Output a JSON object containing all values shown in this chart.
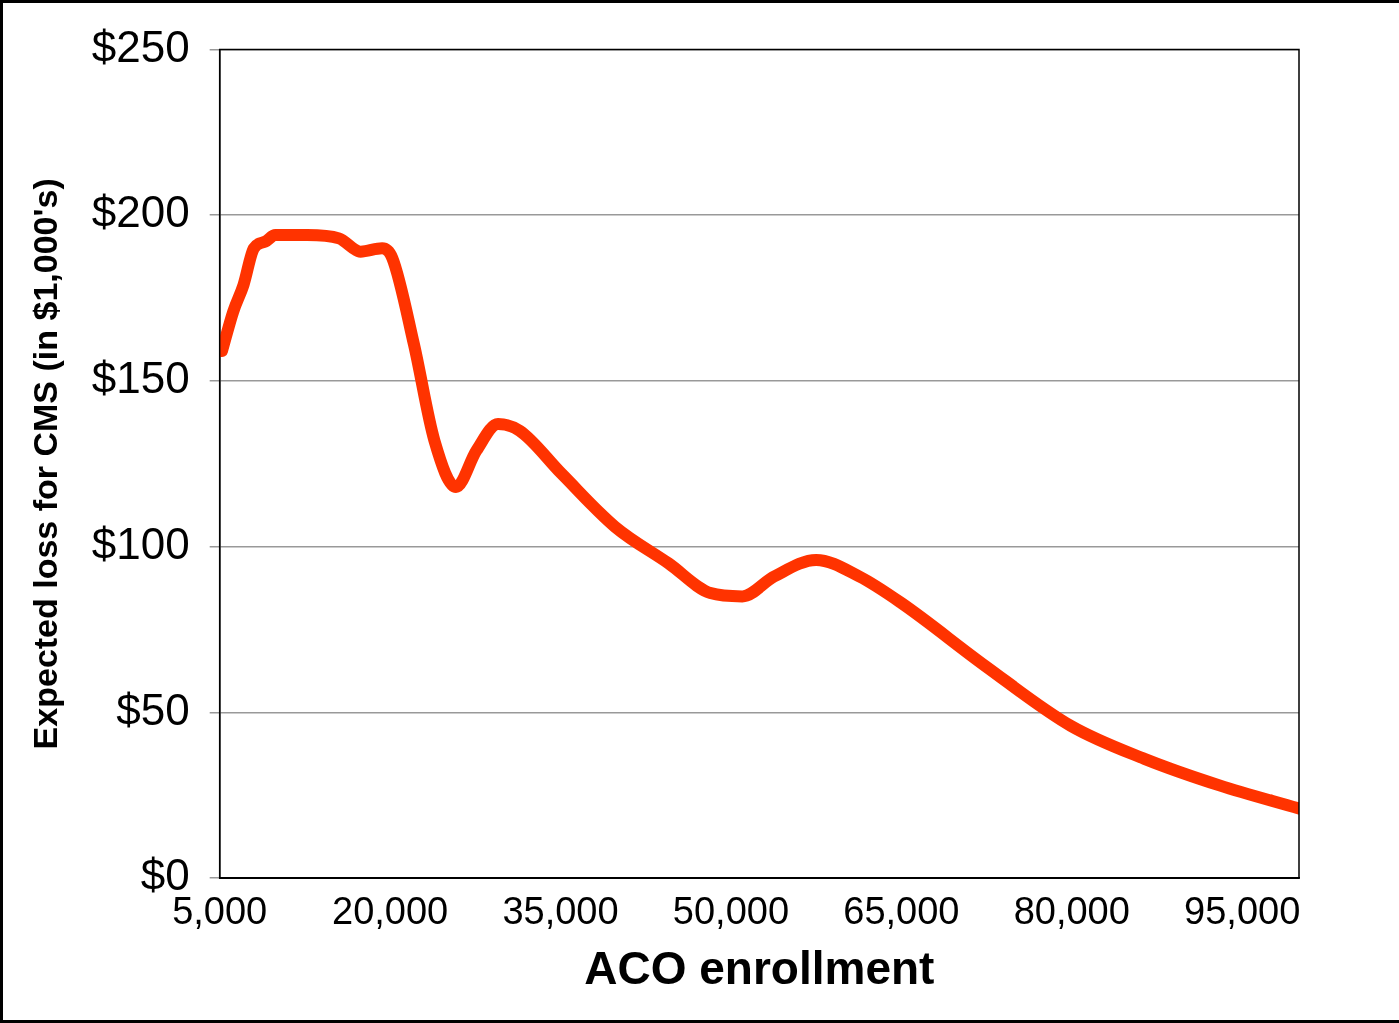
{
  "chart_data": {
    "type": "line",
    "xlabel": "ACO enrollment",
    "ylabel": "Expected loss for CMS (in $1,000's)",
    "x": [
      5200,
      6200,
      7100,
      8000,
      9000,
      9900,
      12700,
      15500,
      17400,
      19300,
      20200,
      22100,
      23900,
      25800,
      27600,
      29500,
      31400,
      35100,
      39800,
      44500,
      48200,
      51000,
      53800,
      57500,
      61300,
      65000,
      72400,
      79900,
      86400,
      93000,
      100000
    ],
    "series": [
      {
        "color": "#ff3300",
        "values": [
          159,
          171,
          179,
          190,
          192,
          194,
          194,
          193,
          189,
          190,
          187,
          161,
          132,
          118,
          129,
          137,
          135,
          122,
          106,
          95,
          86,
          85,
          91,
          96,
          91,
          83,
          64,
          46,
          36,
          28,
          21
        ]
      }
    ],
    "xlim": [
      5000,
      100000
    ],
    "xticks": [
      {
        "value": 5000,
        "label": "5,000"
      },
      {
        "value": 20000,
        "label": "20,000"
      },
      {
        "value": 35000,
        "label": "35,000"
      },
      {
        "value": 50000,
        "label": "50,000"
      },
      {
        "value": 65000,
        "label": "65,000"
      },
      {
        "value": 80000,
        "label": "80,000"
      },
      {
        "value": 95000,
        "label": "95,000"
      }
    ],
    "ylim": [
      0,
      250
    ],
    "yticks": [
      {
        "value": 0,
        "label": "$0"
      },
      {
        "value": 50,
        "label": "$50"
      },
      {
        "value": 100,
        "label": "$100"
      },
      {
        "value": 150,
        "label": "$150"
      },
      {
        "value": 200,
        "label": "$200"
      },
      {
        "value": 250,
        "label": "$250"
      }
    ],
    "grid": "y",
    "legend": false,
    "marker": "none",
    "line_style": "solid"
  }
}
